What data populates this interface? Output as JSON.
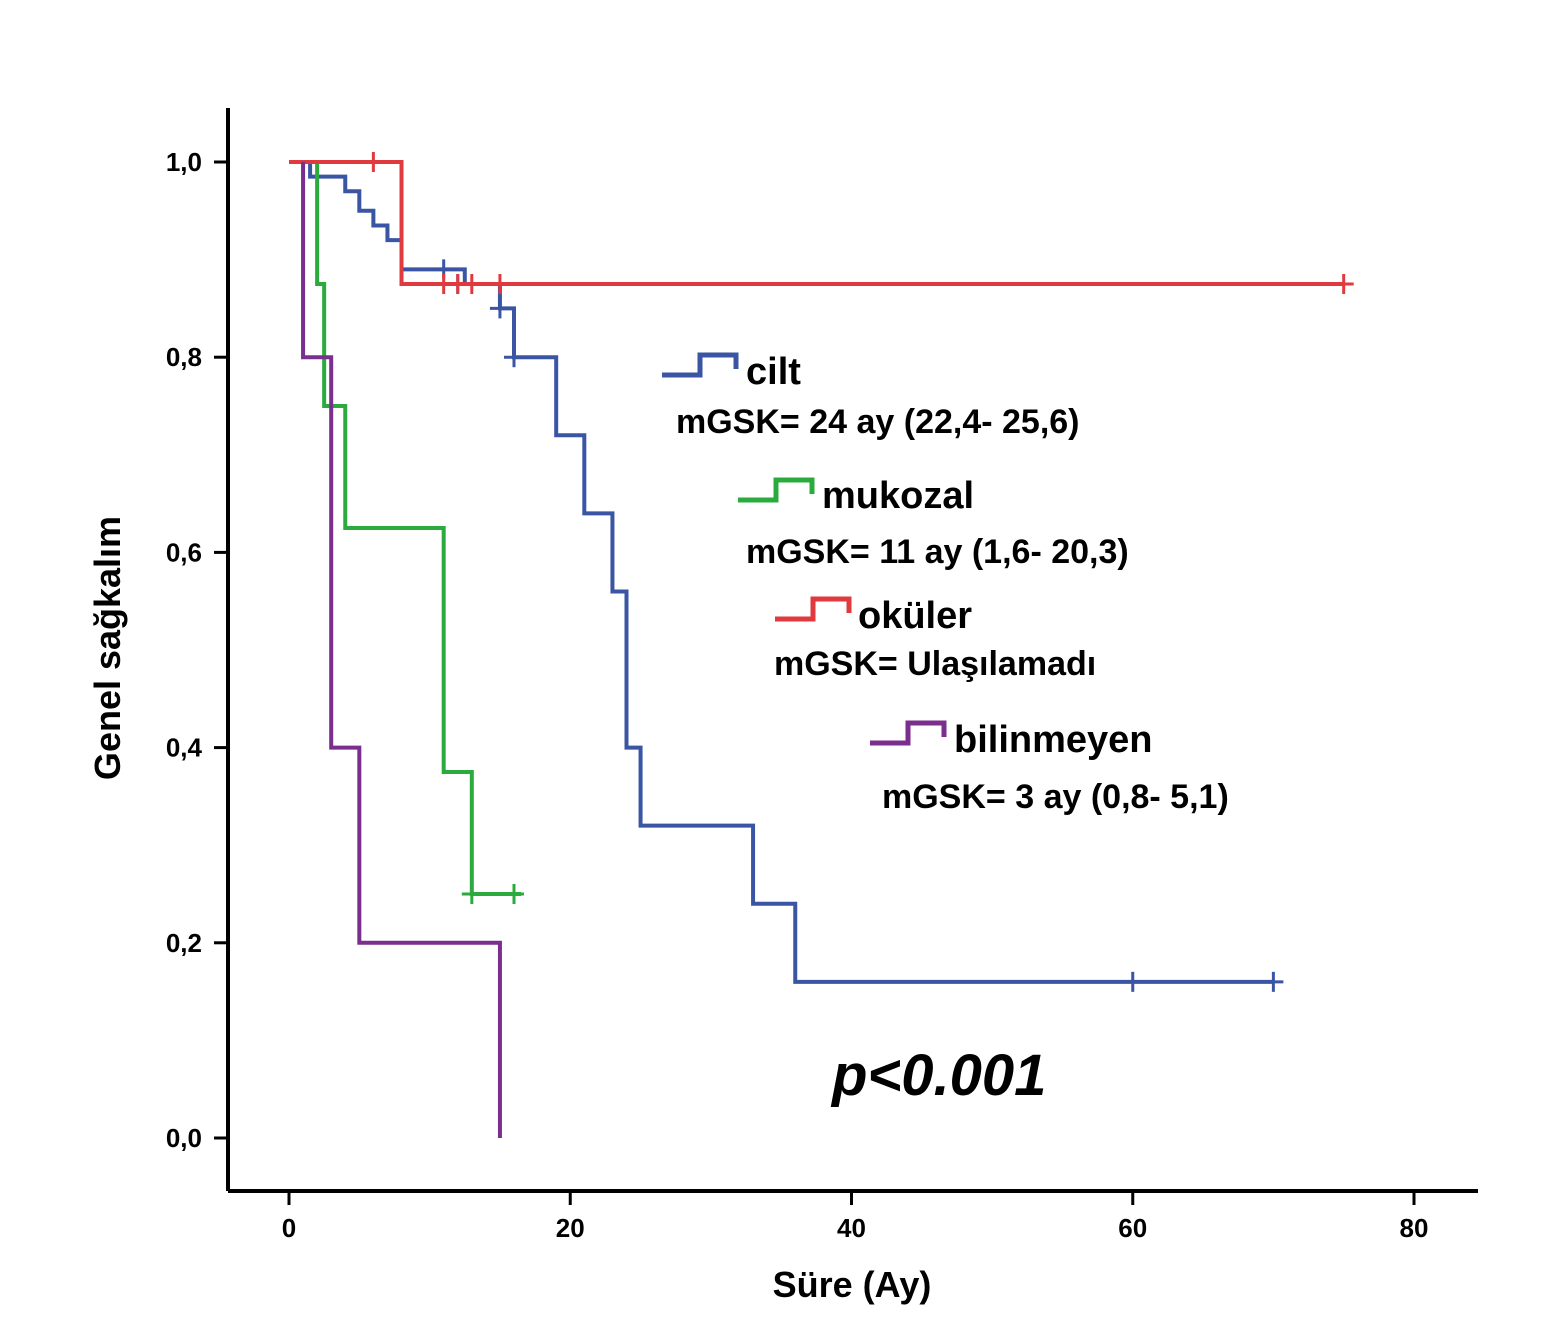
{
  "chart_data": {
    "type": "line",
    "xlabel": "Süre (Ay)",
    "ylabel": "Genel sağkalım",
    "xlim": [
      -4,
      84
    ],
    "ylim": [
      -0.055,
      1.055
    ],
    "x_ticks": [
      0,
      20,
      40,
      60,
      80
    ],
    "x_tick_labels": [
      "0",
      "20",
      "40",
      "60",
      "80"
    ],
    "y_ticks": [
      0.0,
      0.2,
      0.4,
      0.6,
      0.8,
      1.0
    ],
    "y_tick_labels": [
      "0,0",
      "0,2",
      "0,4",
      "0,6",
      "0,8",
      "1,0"
    ],
    "grid": false,
    "annotation": "p<0.001",
    "series": [
      {
        "name": "cilt",
        "median_label": "mGSK= 24 ay (22,4- 25,6)",
        "color": "#3a55a4",
        "steps": [
          [
            0,
            1.0
          ],
          [
            1.5,
            0.985
          ],
          [
            4,
            0.97
          ],
          [
            5,
            0.95
          ],
          [
            6,
            0.935
          ],
          [
            7,
            0.92
          ],
          [
            8,
            0.89
          ],
          [
            12.5,
            0.875
          ],
          [
            15,
            0.85
          ],
          [
            16,
            0.8
          ],
          [
            19,
            0.72
          ],
          [
            21,
            0.64
          ],
          [
            23,
            0.56
          ],
          [
            24,
            0.4
          ],
          [
            25,
            0.32
          ],
          [
            33,
            0.24
          ],
          [
            36,
            0.16
          ],
          [
            70,
            0.16
          ]
        ],
        "censored": [
          [
            11,
            0.89
          ],
          [
            12,
            0.875
          ],
          [
            15,
            0.85
          ],
          [
            16,
            0.8
          ],
          [
            60,
            0.16
          ],
          [
            70,
            0.16
          ]
        ]
      },
      {
        "name": "mukozal",
        "median_label": "mGSK= 11 ay (1,6- 20,3)",
        "color": "#2bab3e",
        "steps": [
          [
            1,
            1.0
          ],
          [
            2,
            0.875
          ],
          [
            2.5,
            0.75
          ],
          [
            4,
            0.625
          ],
          [
            11,
            0.375
          ],
          [
            13,
            0.25
          ],
          [
            16.5,
            0.25
          ]
        ],
        "censored": [
          [
            13,
            0.25
          ],
          [
            16,
            0.25
          ]
        ]
      },
      {
        "name": "oküler",
        "median_label": "mGSK= Ulaşılamadı",
        "color": "#e03a3e",
        "steps": [
          [
            0,
            1.0
          ],
          [
            8,
            0.875
          ],
          [
            75,
            0.875
          ]
        ],
        "censored": [
          [
            6,
            1.0
          ],
          [
            11,
            0.875
          ],
          [
            12,
            0.875
          ],
          [
            13,
            0.875
          ],
          [
            15,
            0.875
          ],
          [
            75,
            0.875
          ]
        ]
      },
      {
        "name": "bilinmeyen",
        "median_label": "mGSK= 3 ay (0,8- 5,1)",
        "color": "#7a2f8e",
        "steps": [
          [
            1,
            1.0
          ],
          [
            1,
            0.8
          ],
          [
            3,
            0.4
          ],
          [
            5,
            0.2
          ],
          [
            15,
            0.0
          ]
        ],
        "censored": []
      }
    ]
  }
}
